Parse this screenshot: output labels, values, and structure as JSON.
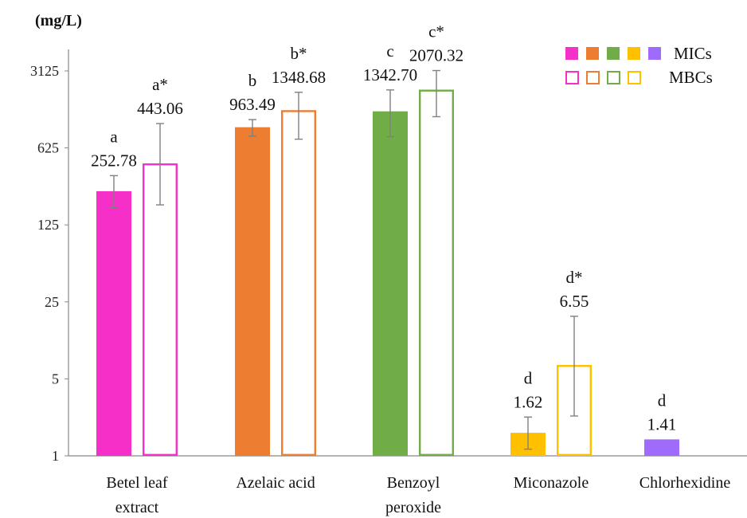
{
  "chart_data": {
    "type": "bar",
    "unit_label": "(mg/L)",
    "y_scale": "log5",
    "ylim": [
      1,
      3125
    ],
    "yticks": [
      "1",
      "5",
      "25",
      "125",
      "625",
      "3125"
    ],
    "grid": false,
    "legend_position": "top-right",
    "categories": [
      {
        "lines": [
          "Betel leaf",
          "extract"
        ]
      },
      {
        "lines": [
          "Azelaic acid"
        ]
      },
      {
        "lines": [
          "Benzoyl",
          "peroxide"
        ]
      },
      {
        "lines": [
          "Miconazole"
        ]
      },
      {
        "lines": [
          "Chlorhexidine"
        ]
      }
    ],
    "colors": [
      "#f52fc8",
      "#ed7d31",
      "#70ad47",
      "#ffc000",
      "#9e6bfa"
    ],
    "series": [
      {
        "name": "MICs",
        "style": "filled",
        "values": [
          252.78,
          963.49,
          1342.7,
          1.62,
          1.41
        ],
        "labels": [
          "252.78",
          "963.49",
          "1342.70",
          "1.62",
          "1.41"
        ],
        "letters": [
          "a",
          "b",
          "c",
          "d",
          "d"
        ],
        "error": [
          [
            180,
            350
          ],
          [
            800,
            1130
          ],
          [
            790,
            2100
          ],
          [
            1.15,
            2.25
          ],
          null
        ]
      },
      {
        "name": "MBCs",
        "style": "outline",
        "values": [
          443.06,
          1348.68,
          2070.32,
          6.55,
          null
        ],
        "labels": [
          "443.06",
          "1348.68",
          "2070.32",
          "6.55",
          ""
        ],
        "letters": [
          "a*",
          "b*",
          "c*",
          "d*",
          ""
        ],
        "error": [
          [
            190,
            1040
          ],
          [
            750,
            2000
          ],
          [
            1200,
            3150
          ],
          [
            2.3,
            18.5
          ],
          null
        ]
      }
    ],
    "legend": [
      {
        "label": "MICs",
        "style": "filled"
      },
      {
        "label": "MBCs",
        "style": "outline"
      }
    ]
  }
}
